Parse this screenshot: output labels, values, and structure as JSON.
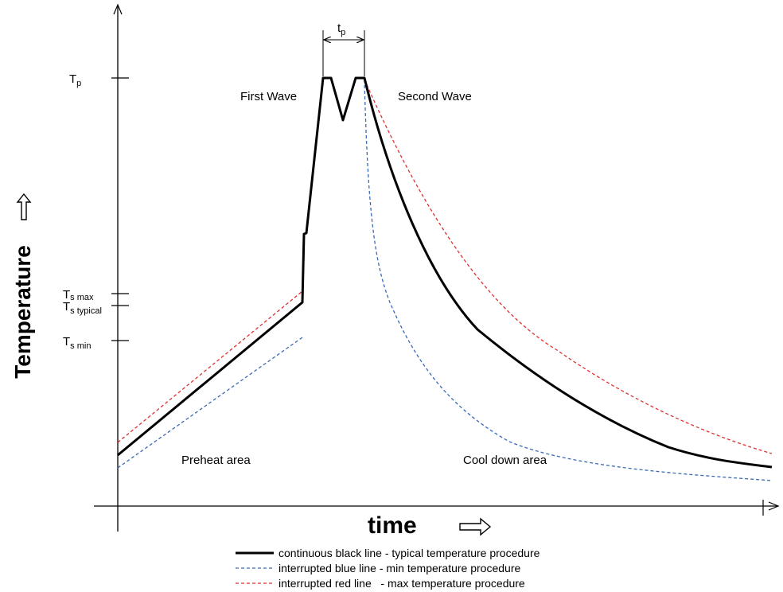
{
  "axes": {
    "y_title": "Temperature",
    "x_title": "time",
    "y_arrow_icon": "hollow-up-arrow-icon",
    "x_arrow_icon": "hollow-right-arrow-icon"
  },
  "y_ticks": [
    {
      "id": "tp",
      "main": "T",
      "sub": "p"
    },
    {
      "id": "ts-max",
      "main": "T",
      "sub": "s max"
    },
    {
      "id": "ts-typical",
      "main": "T",
      "sub": "s typical"
    },
    {
      "id": "ts-min",
      "main": "T",
      "sub": "s min"
    }
  ],
  "dimension": {
    "main": "t",
    "sub": "p"
  },
  "regions": {
    "first_wave": "First Wave",
    "second_wave": "Second Wave",
    "preheat": "Preheat area",
    "cool_down": "Cool down area"
  },
  "legend": [
    {
      "style": "solid",
      "color": "#000000",
      "text": "continuous black line - typical temperature procedure"
    },
    {
      "style": "dashed",
      "color": "#3a6bb4",
      "text": "interrupted blue line - min temperature procedure"
    },
    {
      "style": "dashed",
      "color": "#e03030",
      "text": "interrupted red line   - max temperature procedure"
    }
  ],
  "colors": {
    "typical": "#000000",
    "min": "#3a6bb4",
    "max": "#e03030"
  }
}
